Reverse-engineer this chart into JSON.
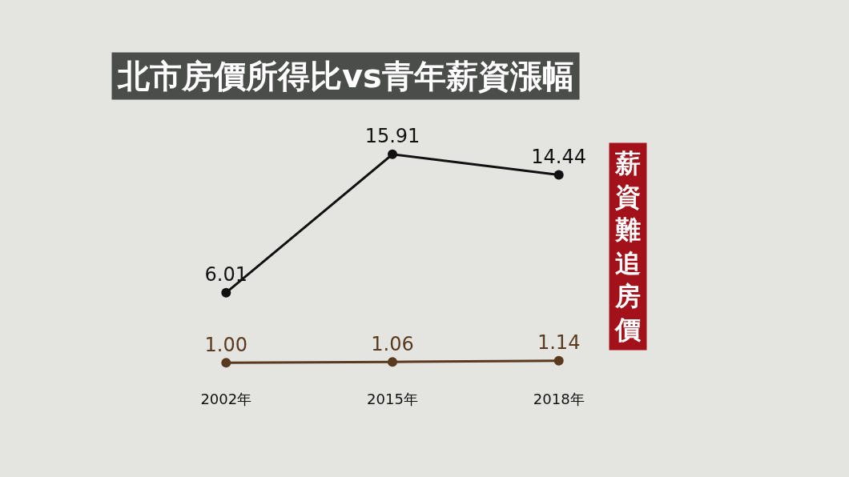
{
  "chart_data": {
    "type": "line",
    "title": "北市房價所得比vs青年薪資漲幅",
    "categories": [
      "2002年",
      "2015年",
      "2018年"
    ],
    "series": [
      {
        "color": "#111111",
        "values": [
          6.01,
          15.91,
          14.44
        ],
        "value_labels": [
          "6.01",
          "15.91",
          "14.44"
        ]
      },
      {
        "color": "#5a3a1e",
        "values": [
          1.0,
          1.06,
          1.14
        ],
        "value_labels": [
          "1.00",
          "1.06",
          "1.14"
        ]
      }
    ],
    "marker": "circle",
    "line_style": "solid",
    "grid": false,
    "legend": false,
    "tick_labels": "x",
    "annotations": [
      "薪資難追房價"
    ]
  }
}
